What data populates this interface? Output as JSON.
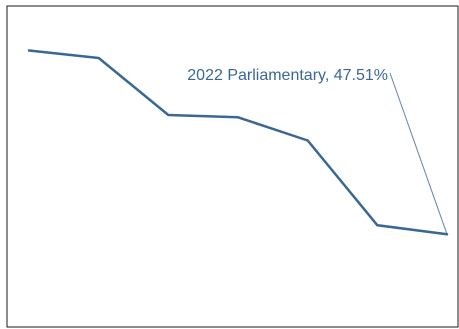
{
  "chart_data": {
    "type": "line",
    "title": "",
    "xlabel": "",
    "ylabel": "",
    "grid": false,
    "legend": "none",
    "line_color": "#3a6795",
    "annotation_color": "#3a6795",
    "ylim": [
      35,
      75
    ],
    "series": [
      {
        "values": [
          72.0,
          71.0,
          63.4,
          63.1,
          60.0,
          48.7,
          47.51
        ]
      }
    ],
    "annotation": {
      "text": "2022 Parliamentary, 47.51%",
      "point_index": 6
    }
  }
}
